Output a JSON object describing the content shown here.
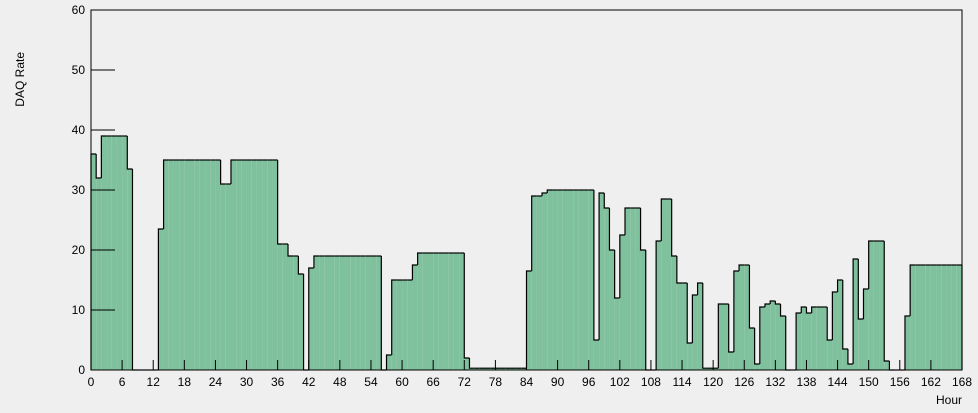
{
  "chart_data": {
    "type": "histogram",
    "y_label": "DAQ Rate",
    "x_label": "Hour",
    "color": "#7fc09d",
    "edge_color": "#000000",
    "bins": [
      0,
      1,
      2,
      3,
      4,
      5,
      6,
      7,
      8,
      9,
      10,
      11,
      12,
      13,
      14,
      15,
      16,
      17,
      18,
      19,
      20,
      21,
      22,
      23,
      24,
      25,
      26,
      27,
      28,
      29,
      30,
      31,
      32,
      33,
      34,
      35,
      36,
      37,
      38,
      39,
      40,
      41,
      42,
      43,
      44,
      45,
      46,
      47,
      48,
      49,
      50,
      51,
      52,
      53,
      54,
      55,
      56,
      57,
      58,
      59,
      60,
      61,
      62,
      63,
      64,
      65,
      66,
      67,
      68,
      69,
      70,
      71,
      72,
      73,
      74,
      75,
      76,
      77,
      78,
      79,
      80,
      81,
      82,
      83,
      84,
      85,
      86,
      87,
      88,
      89,
      90,
      91,
      92,
      93,
      94,
      95,
      96,
      97,
      98,
      99,
      100,
      101,
      102,
      103,
      104,
      105,
      106,
      107,
      108,
      109,
      110,
      111,
      112,
      113,
      114,
      115,
      116,
      117,
      118,
      119,
      120,
      121,
      122,
      123,
      124,
      125,
      126,
      127,
      128,
      129,
      130,
      131,
      132,
      133,
      134,
      135,
      136,
      137,
      138,
      139,
      140,
      141,
      142,
      143,
      144,
      145,
      146,
      147,
      148,
      149,
      150,
      151,
      152,
      153,
      154,
      155,
      156,
      157,
      158,
      159,
      160,
      161,
      162,
      163,
      164,
      165,
      166,
      167,
      168
    ],
    "values": [
      36,
      32,
      39,
      39,
      39,
      39,
      39,
      33.5,
      0,
      0,
      0,
      0,
      0,
      23.5,
      35,
      35,
      35,
      35,
      35,
      35,
      35,
      35,
      35,
      35,
      35,
      31,
      31,
      35,
      35,
      35,
      35,
      35,
      35,
      35,
      35,
      35,
      21,
      21,
      19,
      19,
      16,
      0,
      17,
      19,
      19,
      19,
      19,
      19,
      19,
      19,
      19,
      19,
      19,
      19,
      19,
      19,
      0,
      2.5,
      15,
      15,
      15,
      15,
      17.5,
      19.5,
      19.5,
      19.5,
      19.5,
      19.5,
      19.5,
      19.5,
      19.5,
      19.5,
      2,
      0.3,
      0.3,
      0.3,
      0.3,
      0.3,
      0.3,
      0.3,
      0.3,
      0.3,
      0.3,
      0.3,
      16.5,
      29,
      29,
      29.5,
      30,
      30,
      30,
      30,
      30,
      30,
      30,
      30,
      30,
      5,
      29.5,
      27,
      20,
      12,
      22.5,
      27,
      27,
      27,
      20,
      0,
      0,
      21.5,
      28.5,
      28.5,
      19,
      14.5,
      14.5,
      4.5,
      12.5,
      14.5,
      0.3,
      0.3,
      0.3,
      11,
      11,
      3,
      16.5,
      17.5,
      17.5,
      7,
      1,
      10.5,
      11,
      11.5,
      11,
      9,
      0,
      0,
      9.5,
      10.5,
      9.5,
      10.5,
      10.5,
      10.5,
      5,
      13,
      15,
      3.5,
      1,
      18.5,
      8.5,
      13.5,
      21.5,
      21.5,
      21.5,
      1.5,
      0,
      0,
      0,
      9,
      17.5,
      17.5,
      17.5,
      17.5,
      17.5,
      17.5,
      17.5,
      17.5,
      17.5,
      17.5
    ],
    "xlim": [
      0,
      168
    ],
    "xticks": [
      0,
      6,
      12,
      18,
      24,
      30,
      36,
      42,
      48,
      54,
      60,
      66,
      72,
      78,
      84,
      90,
      96,
      102,
      108,
      114,
      120,
      126,
      132,
      138,
      144,
      150,
      156,
      162,
      168
    ],
    "ylim": [
      0,
      60
    ],
    "yticks": [
      0,
      10,
      20,
      30,
      40,
      50,
      60
    ]
  }
}
